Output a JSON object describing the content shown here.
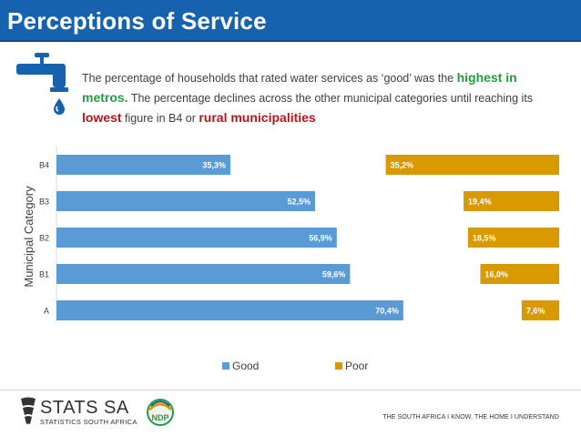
{
  "header": {
    "title": "Perceptions of Service"
  },
  "intro": {
    "part1": "The percentage of households that rated water services as ‘good’ was the ",
    "highlight1": "highest in metros.",
    "part2": " The percentage declines across the other municipal categories until reaching its ",
    "highlight2": "lowest",
    "part3": " figure in B4 or ",
    "highlight3": "rural municipalities"
  },
  "chart_data": {
    "type": "bar",
    "orientation": "horizontal",
    "ylabel": "Municipal Category",
    "categories": [
      "B4",
      "B3",
      "B2",
      "B1",
      "A"
    ],
    "series": [
      {
        "name": "Good",
        "color": "#5b9bd5",
        "values": [
          35.3,
          52.5,
          56.9,
          59.6,
          70.4
        ],
        "labels": [
          "35,3%",
          "52,5%",
          "56,9%",
          "59,6%",
          "70,4%"
        ]
      },
      {
        "name": "Poor",
        "color": "#d99a00",
        "values": [
          35.2,
          19.4,
          18.5,
          16.0,
          7.6
        ],
        "labels": [
          "35,2%",
          "19,4%",
          "18,5%",
          "16,0%",
          "7,6%"
        ]
      }
    ],
    "xlim": [
      0,
      100
    ],
    "legend_position": "bottom"
  },
  "footer": {
    "org_name": "STATS SA",
    "org_sub": "STATISTICS SOUTH AFRICA",
    "ndp_text": "NDP",
    "tagline": "THE SOUTH AFRICA I KNOW, THE HOME I UNDERSTAND"
  },
  "colors": {
    "header_bg": "#1762ae",
    "good": "#5b9bd5",
    "poor": "#d99a00",
    "highlight_green": "#2b9a45",
    "highlight_red": "#b3161c"
  }
}
